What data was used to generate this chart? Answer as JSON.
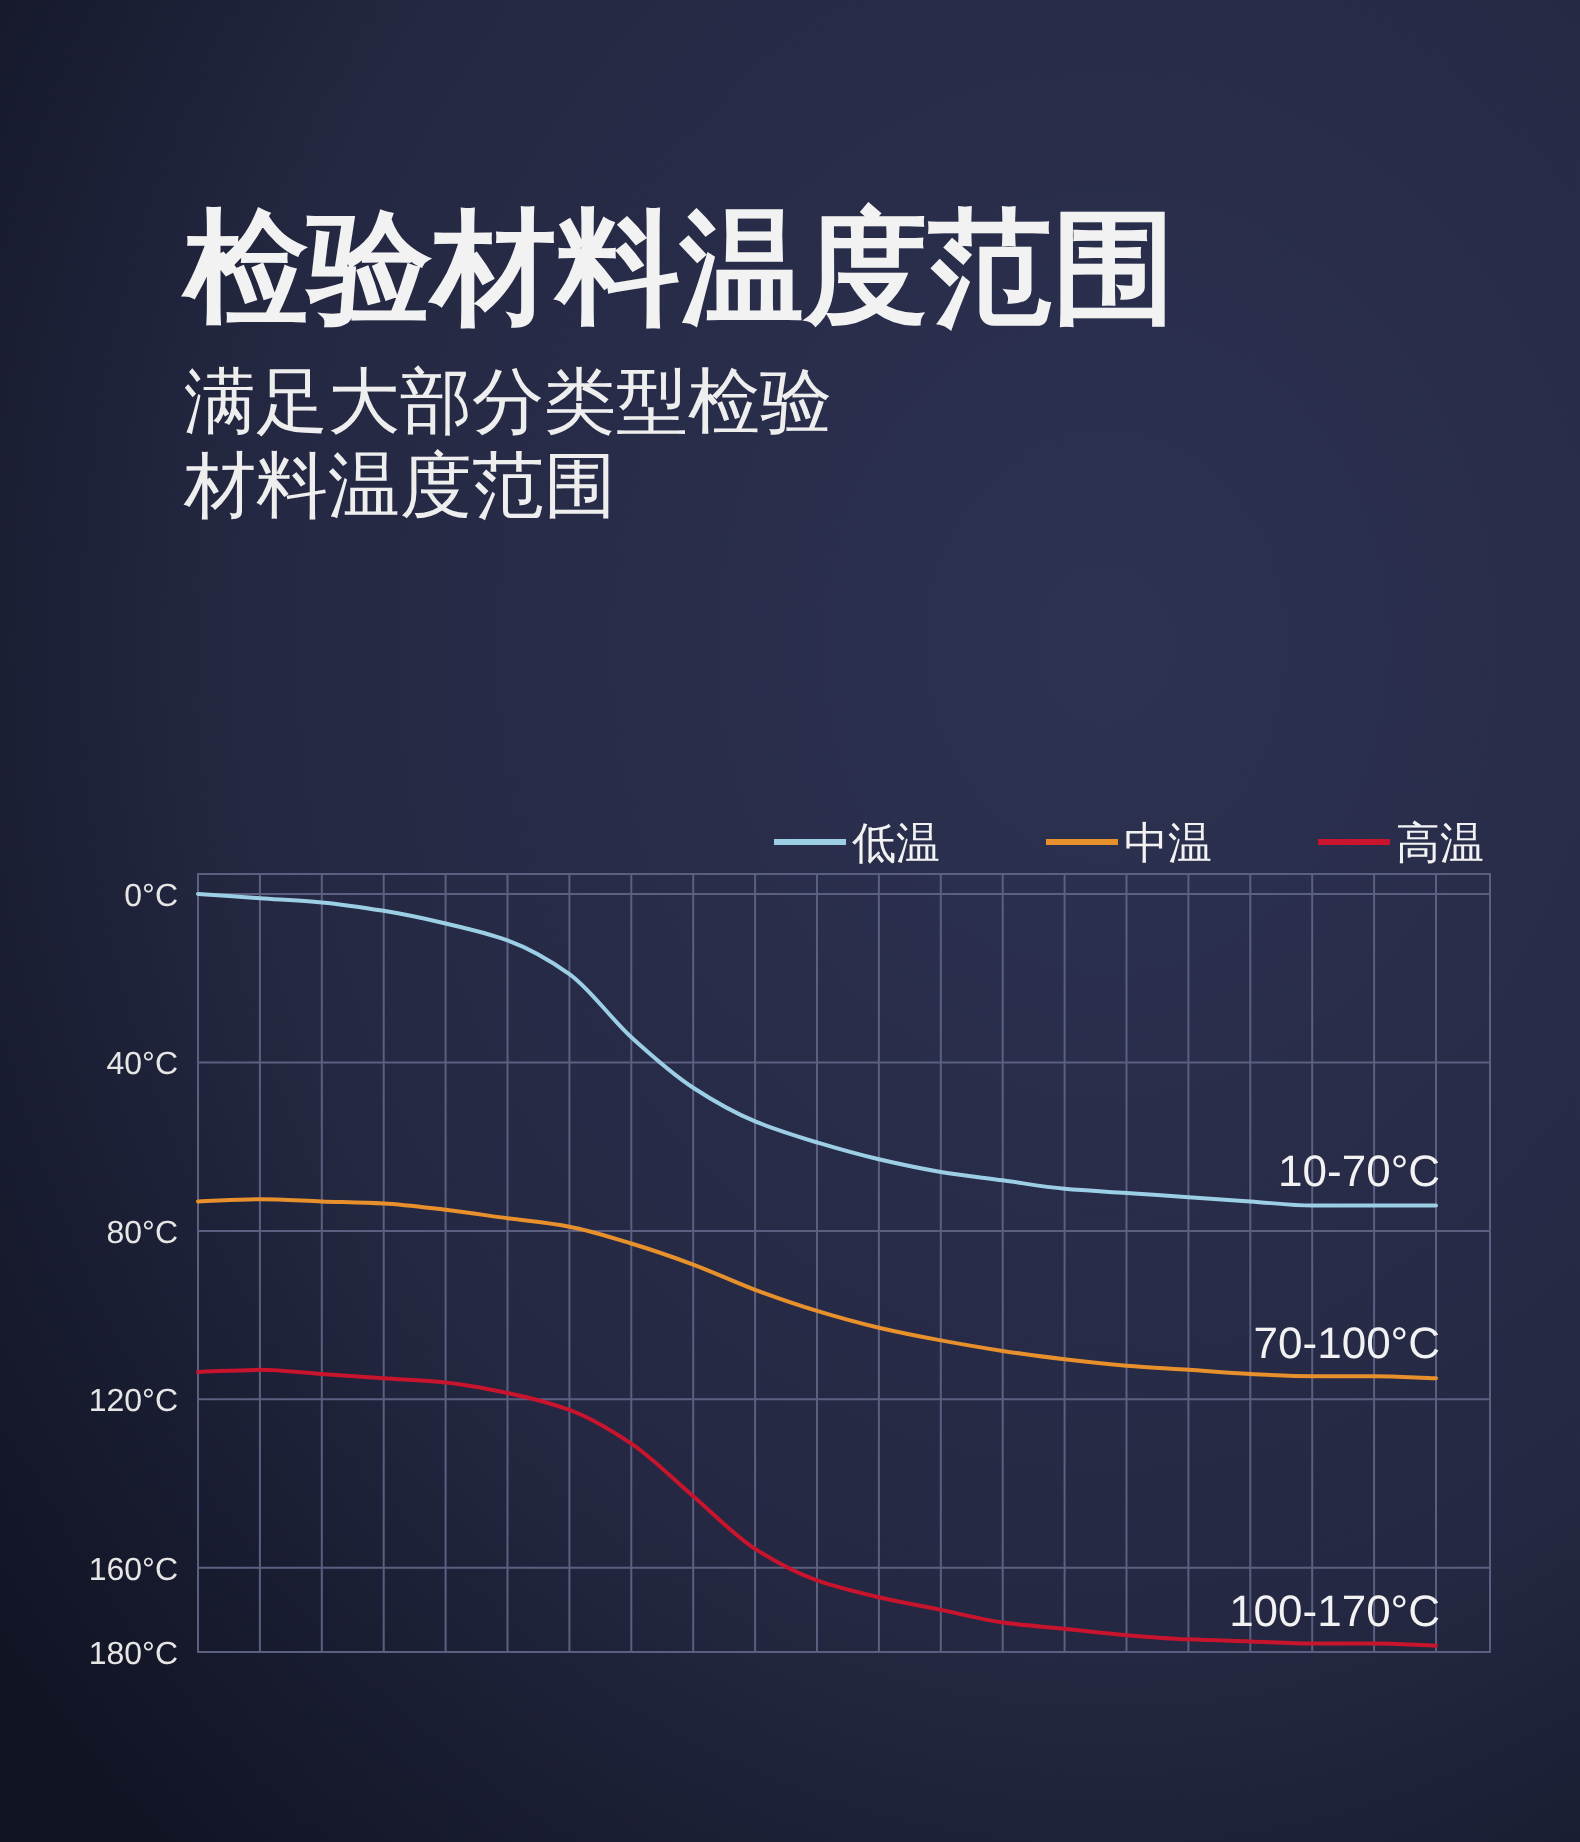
{
  "chart_data": {
    "type": "line",
    "title": "检验材料温度范围",
    "subtitle": "满足大部分类型检验材料温度范围",
    "categories": [
      null,
      null,
      null,
      null,
      null,
      null,
      null,
      null,
      null,
      null,
      null,
      null,
      null,
      null,
      null,
      null,
      null,
      null,
      null,
      null,
      null
    ],
    "series": [
      {
        "name": "低温",
        "color": "#9ccfe6",
        "values": [
          0,
          1,
          2,
          4,
          7,
          11,
          19,
          34,
          46,
          54,
          59,
          63,
          66,
          68,
          70,
          71,
          72,
          73,
          74,
          74,
          74
        ]
      },
      {
        "name": "中温",
        "color": "#e8902c",
        "values": [
          73,
          72.5,
          73,
          73.5,
          75,
          77,
          79,
          83,
          88,
          94,
          99,
          103,
          106,
          108.5,
          110.5,
          112,
          113,
          114,
          114.5,
          114.5,
          115
        ]
      },
      {
        "name": "高温",
        "color": "#c8142c",
        "values": [
          113.5,
          113,
          114,
          115,
          116,
          118.5,
          122.5,
          130.5,
          143,
          155.5,
          163,
          167,
          170,
          173,
          174.5,
          176,
          177,
          177.5,
          178,
          178,
          178.5
        ]
      }
    ],
    "annotations": [
      {
        "text": "10-70°C",
        "y": 74
      },
      {
        "text": "70-100°C",
        "y": 115
      },
      {
        "text": "100-170°C",
        "y": 178.5
      }
    ],
    "ylim": [
      180,
      0
    ],
    "yticks": [
      {
        "value": 0,
        "label": "0°C"
      },
      {
        "value": 40,
        "label": "40°C"
      },
      {
        "value": 80,
        "label": "80°C"
      },
      {
        "value": 120,
        "label": "120°C"
      },
      {
        "value": 160,
        "label": "160°C"
      },
      {
        "value": 180,
        "label": "180°C"
      }
    ],
    "grid": true,
    "legend": "top right",
    "marker": "none",
    "line_style": "solid",
    "tick_labels": "y"
  }
}
